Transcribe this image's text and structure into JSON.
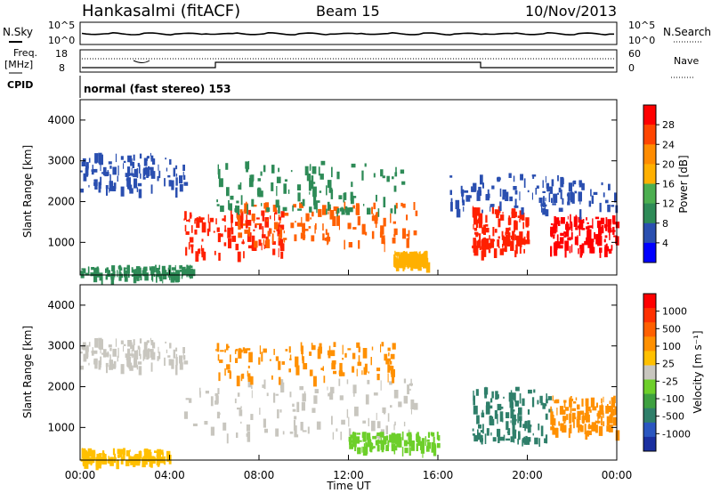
{
  "header": {
    "station": "Hankasalmi (fitACF)",
    "beam": "Beam 15",
    "date": "10/Nov/2013"
  },
  "noise_panel": {
    "left_label": "N.Sky",
    "right_label": "N.Search",
    "y_ticks": [
      "10^5",
      "10^0"
    ]
  },
  "freq_panel": {
    "left_label_1": "Freq.",
    "left_label_2": "[MHz]",
    "left_ticks": [
      "18",
      "8"
    ],
    "right_label": "Nave",
    "right_ticks": [
      "60",
      "0"
    ]
  },
  "cpid": {
    "label": "CPID",
    "text": "normal (fast stereo) 153"
  },
  "time_axis": {
    "ticks": [
      "00:00",
      "04:00",
      "08:00",
      "12:00",
      "16:00",
      "20:00",
      "00:00"
    ],
    "label": "Time UT"
  },
  "range_axis": {
    "label": "Slant Range [km]",
    "ticks": [
      "1000",
      "2000",
      "3000",
      "4000"
    ]
  },
  "power_colorbar": {
    "label": "Power [dB]",
    "ticks": [
      "4",
      "8",
      "12",
      "16",
      "20",
      "24",
      "28"
    ],
    "colors": [
      "#0000ff",
      "#2a4fb0",
      "#2e8b57",
      "#4caf50",
      "#ffb000",
      "#ff8c00",
      "#ff4500",
      "#ff0000"
    ]
  },
  "velocity_colorbar": {
    "label": "Velocity [m s⁻¹]",
    "ticks": [
      "1000",
      "500",
      "100",
      "25",
      "-25",
      "-100",
      "-500",
      "-1000"
    ],
    "colors": [
      "#1a2fa0",
      "#2a56c0",
      "#2f7f6a",
      "#3ea040",
      "#6dcf2a",
      "#c8c6bf",
      "#ffc000",
      "#ff9000",
      "#ff6000",
      "#ff3000",
      "#ff0000"
    ]
  },
  "chart_data": {
    "type": "heatmap",
    "x_unit": "hours UT",
    "xlim": [
      0,
      24
    ],
    "ylim": [
      200,
      4500
    ],
    "power_bands": [
      {
        "t0": 0.0,
        "t1": 4.8,
        "r0": 2300,
        "r1": 3200,
        "color": "#2a4fb0"
      },
      {
        "t0": 0.0,
        "t1": 5.0,
        "r0": 200,
        "r1": 450,
        "color": "#2e8b57"
      },
      {
        "t0": 4.6,
        "t1": 9.0,
        "r0": 700,
        "r1": 1800,
        "color": "#ff2000"
      },
      {
        "t0": 7.0,
        "t1": 15.0,
        "r0": 1000,
        "r1": 2000,
        "color": "#ff6000"
      },
      {
        "t0": 6.0,
        "t1": 14.5,
        "r0": 1800,
        "r1": 3000,
        "color": "#2e8b57"
      },
      {
        "t0": 14.0,
        "t1": 15.5,
        "r0": 500,
        "r1": 800,
        "color": "#ffb000"
      },
      {
        "t0": 17.5,
        "t1": 20.0,
        "r0": 800,
        "r1": 1900,
        "color": "#ff2000"
      },
      {
        "t0": 21.0,
        "t1": 24.0,
        "r0": 800,
        "r1": 1700,
        "color": "#ff0000"
      },
      {
        "t0": 16.5,
        "t1": 24.0,
        "r0": 1800,
        "r1": 2700,
        "color": "#2a4fb0"
      }
    ],
    "velocity_bands": [
      {
        "t0": 0.0,
        "t1": 4.8,
        "r0": 2500,
        "r1": 3200,
        "color": "#c8c6bf"
      },
      {
        "t0": 4.6,
        "t1": 15.0,
        "r0": 800,
        "r1": 2200,
        "color": "#c8c6bf"
      },
      {
        "t0": 6.0,
        "t1": 14.0,
        "r0": 2200,
        "r1": 3100,
        "color": "#ff9000"
      },
      {
        "t0": 12.0,
        "t1": 16.0,
        "r0": 500,
        "r1": 900,
        "color": "#6dcf2a"
      },
      {
        "t0": 17.5,
        "t1": 21.0,
        "r0": 700,
        "r1": 2000,
        "color": "#2f7f6a"
      },
      {
        "t0": 21.0,
        "t1": 24.0,
        "r0": 900,
        "r1": 1800,
        "color": "#ff9000"
      },
      {
        "t0": 0.0,
        "t1": 4.0,
        "r0": 200,
        "r1": 500,
        "color": "#ffc000"
      }
    ]
  }
}
